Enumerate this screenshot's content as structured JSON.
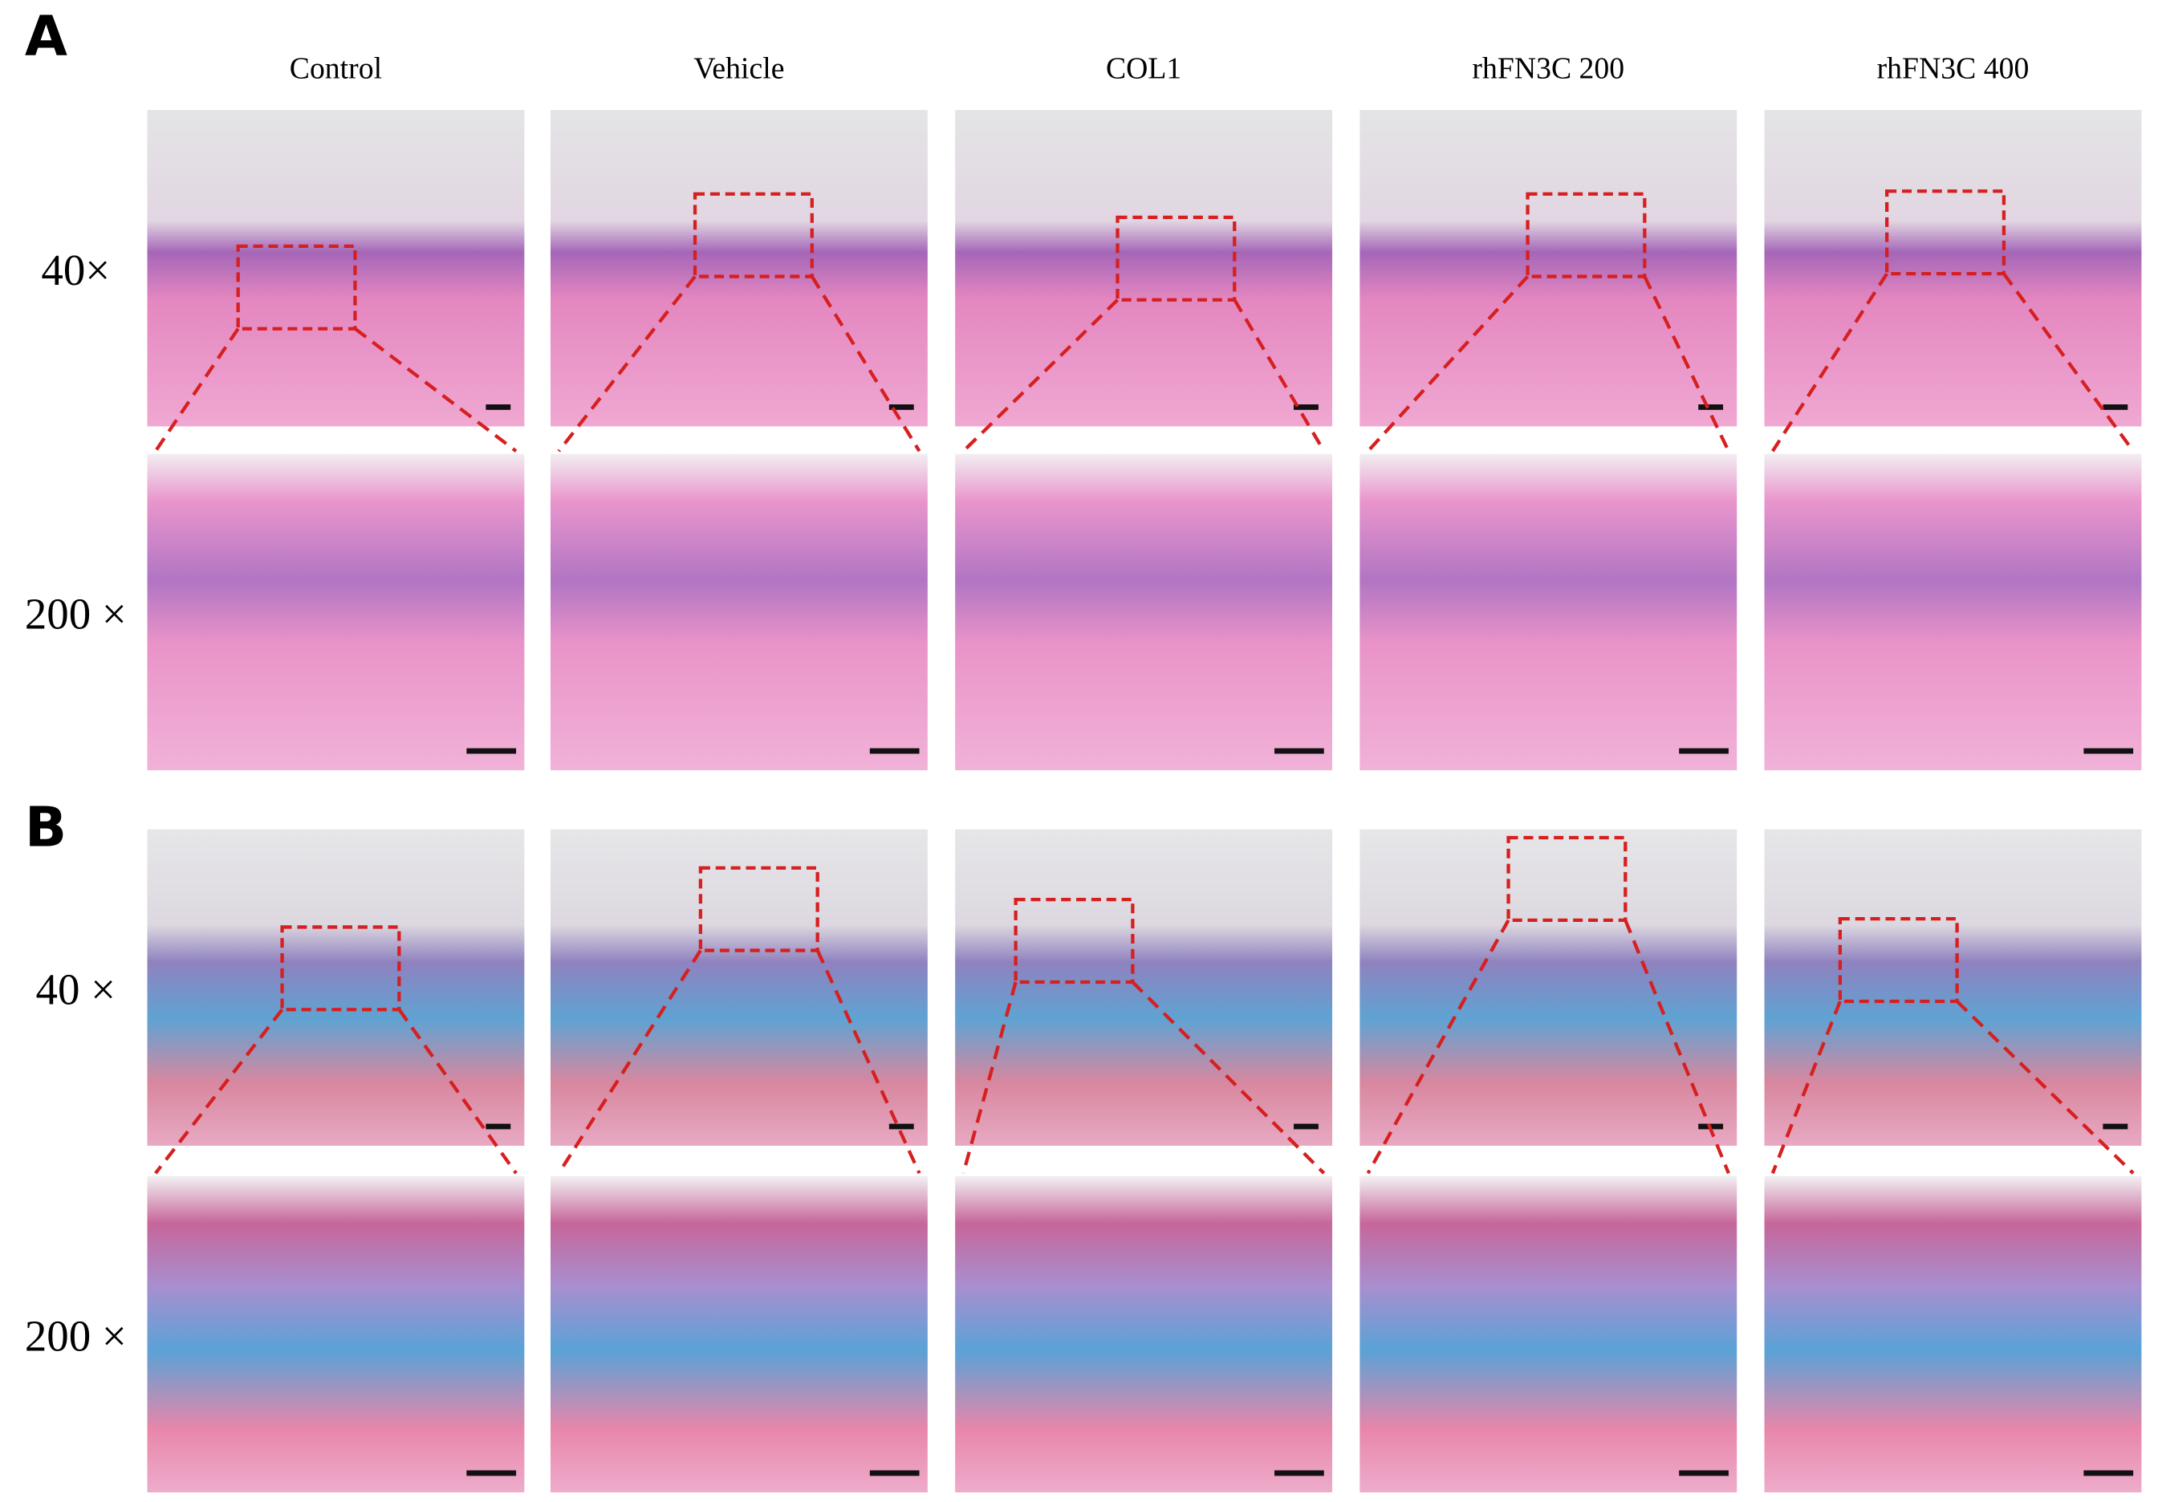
{
  "columns": [
    "Control",
    "Vehicle",
    "COL1",
    "rhFN3C 200",
    "rhFN3C 400"
  ],
  "panels": [
    {
      "label": "A",
      "row_labels": [
        "40×",
        "200 ×"
      ]
    },
    {
      "label": "B",
      "row_labels": [
        "40 ×",
        "200 ×"
      ]
    }
  ]
}
